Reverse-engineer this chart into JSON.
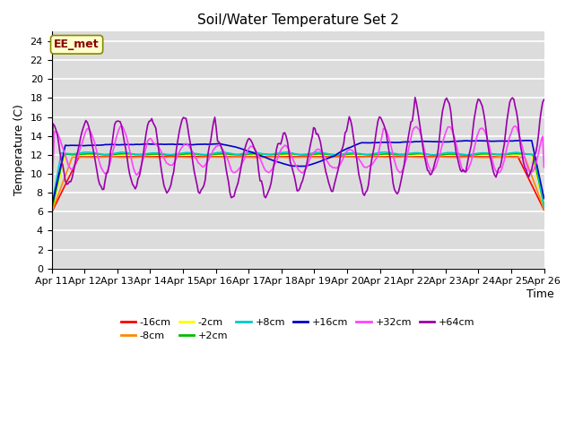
{
  "title": "Soil/Water Temperature Set 2",
  "xlabel": "Time",
  "ylabel": "Temperature (C)",
  "ylim": [
    0,
    25
  ],
  "yticks": [
    0,
    2,
    4,
    6,
    8,
    10,
    12,
    14,
    16,
    18,
    20,
    22,
    24
  ],
  "x_labels": [
    "Apr 11",
    "Apr 12",
    "Apr 13",
    "Apr 14",
    "Apr 15",
    "Apr 16",
    "Apr 17",
    "Apr 18",
    "Apr 19",
    "Apr 20",
    "Apr 21",
    "Apr 22",
    "Apr 23",
    "Apr 24",
    "Apr 25",
    "Apr 26"
  ],
  "annotation": "EE_met",
  "annotation_color": "#8B0000",
  "annotation_bg": "#FFFFCC",
  "series": [
    {
      "label": "-16cm",
      "color": "#FF0000"
    },
    {
      "label": "-8cm",
      "color": "#FF8800"
    },
    {
      "label": "-2cm",
      "color": "#FFFF00"
    },
    {
      "label": "+2cm",
      "color": "#00BB00"
    },
    {
      "label": "+8cm",
      "color": "#00CCCC"
    },
    {
      "label": "+16cm",
      "color": "#0000CC"
    },
    {
      "label": "+32cm",
      "color": "#FF44FF"
    },
    {
      "label": "+64cm",
      "color": "#9900AA"
    }
  ],
  "plot_bg": "#DCDCDC",
  "grid_color": "#FFFFFF",
  "fig_bg": "#FFFFFF"
}
